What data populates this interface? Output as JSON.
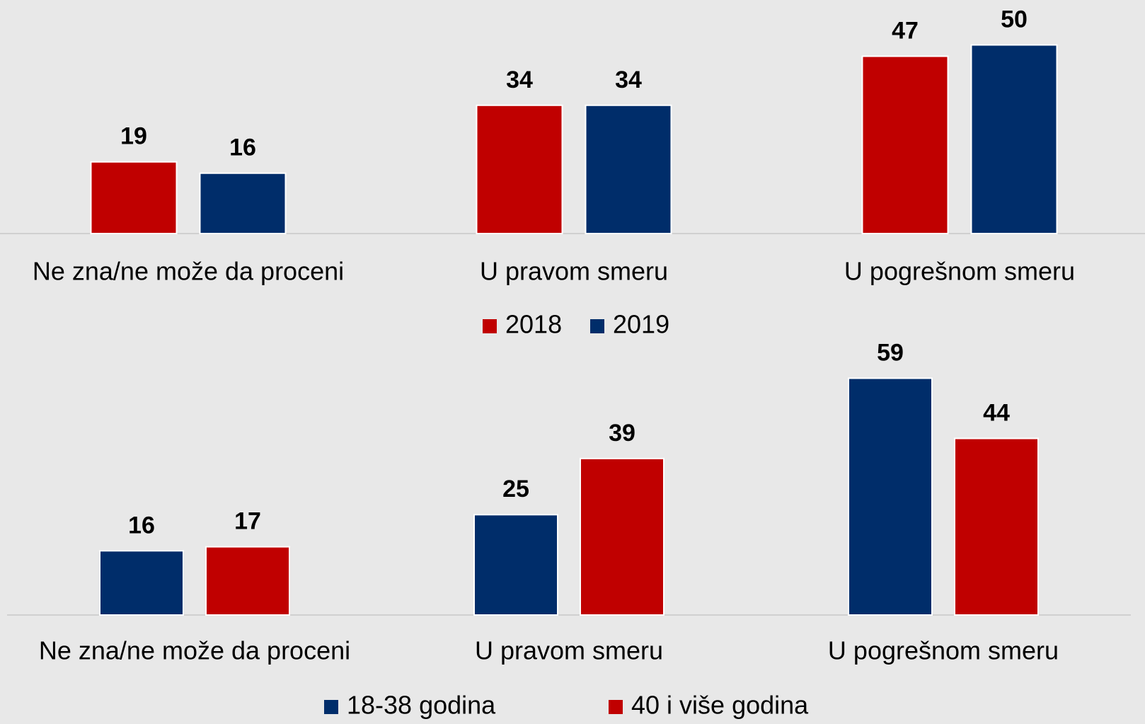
{
  "chart_data": [
    {
      "type": "bar",
      "categories": [
        "Ne zna/ne može da proceni",
        "U pravom smeru",
        "U pogrešnom smeru"
      ],
      "series": [
        {
          "name": "2018",
          "color": "#c00000",
          "values": [
            19,
            34,
            47
          ]
        },
        {
          "name": "2019",
          "color": "#002d6a",
          "values": [
            16,
            34,
            50
          ]
        }
      ],
      "legend": "bottom"
    },
    {
      "type": "bar",
      "categories": [
        "Ne zna/ne može da proceni",
        "U pravom smeru",
        "U pogrešnom smeru"
      ],
      "series": [
        {
          "name": "18-38 godina",
          "color": "#002d6a",
          "values": [
            16,
            25,
            59
          ]
        },
        {
          "name": "40 i više godina",
          "color": "#c00000",
          "values": [
            17,
            39,
            44
          ]
        }
      ],
      "legend": "bottom"
    }
  ]
}
